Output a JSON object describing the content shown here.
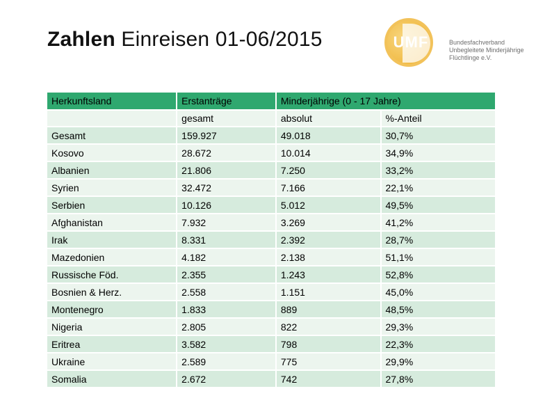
{
  "slide": {
    "title_bold": "Zahlen",
    "title_rest": " Einreisen 01-06/2015"
  },
  "logo": {
    "mark": "UMF",
    "line1": "Bundesfachverband",
    "line2": "Unbegleitete Minderjährige",
    "line3": "Flüchtlinge e.V.",
    "color": "#f2c25a"
  },
  "table": {
    "header": {
      "col1": "Herkunftsland",
      "col2": "Erstanträge",
      "col3": "Minderjährige (0 - 17 Jahre)"
    },
    "subheader": {
      "col1": "",
      "col2": "gesamt",
      "col3": "absolut",
      "col4": "%-Anteil"
    },
    "rows": [
      {
        "land": "Gesamt",
        "gesamt": "159.927",
        "absolut": "49.018",
        "anteil": "30,7%"
      },
      {
        "land": "Kosovo",
        "gesamt": "28.672",
        "absolut": "10.014",
        "anteil": "34,9%"
      },
      {
        "land": "Albanien",
        "gesamt": "21.806",
        "absolut": "7.250",
        "anteil": "33,2%"
      },
      {
        "land": "Syrien",
        "gesamt": "32.472",
        "absolut": "7.166",
        "anteil": "22,1%"
      },
      {
        "land": "Serbien",
        "gesamt": "10.126",
        "absolut": "5.012",
        "anteil": "49,5%"
      },
      {
        "land": "Afghanistan",
        "gesamt": "7.932",
        "absolut": "3.269",
        "anteil": "41,2%"
      },
      {
        "land": "Irak",
        "gesamt": "8.331",
        "absolut": "2.392",
        "anteil": "28,7%"
      },
      {
        "land": "Mazedonien",
        "gesamt": "4.182",
        "absolut": "2.138",
        "anteil": "51,1%"
      },
      {
        "land": "Russische Föd.",
        "gesamt": "2.355",
        "absolut": "1.243",
        "anteil": "52,8%"
      },
      {
        "land": "Bosnien & Herz.",
        "gesamt": "2.558",
        "absolut": "1.151",
        "anteil": "45,0%"
      },
      {
        "land": "Montenegro",
        "gesamt": "1.833",
        "absolut": "889",
        "anteil": "48,5%"
      },
      {
        "land": "Nigeria",
        "gesamt": "2.805",
        "absolut": "822",
        "anteil": "29,3%"
      },
      {
        "land": "Eritrea",
        "gesamt": "3.582",
        "absolut": "798",
        "anteil": "22,3%"
      },
      {
        "land": "Ukraine",
        "gesamt": "2.589",
        "absolut": "775",
        "anteil": "29,9%"
      },
      {
        "land": "Somalia",
        "gesamt": "2.672",
        "absolut": "742",
        "anteil": "27,8%"
      }
    ]
  }
}
